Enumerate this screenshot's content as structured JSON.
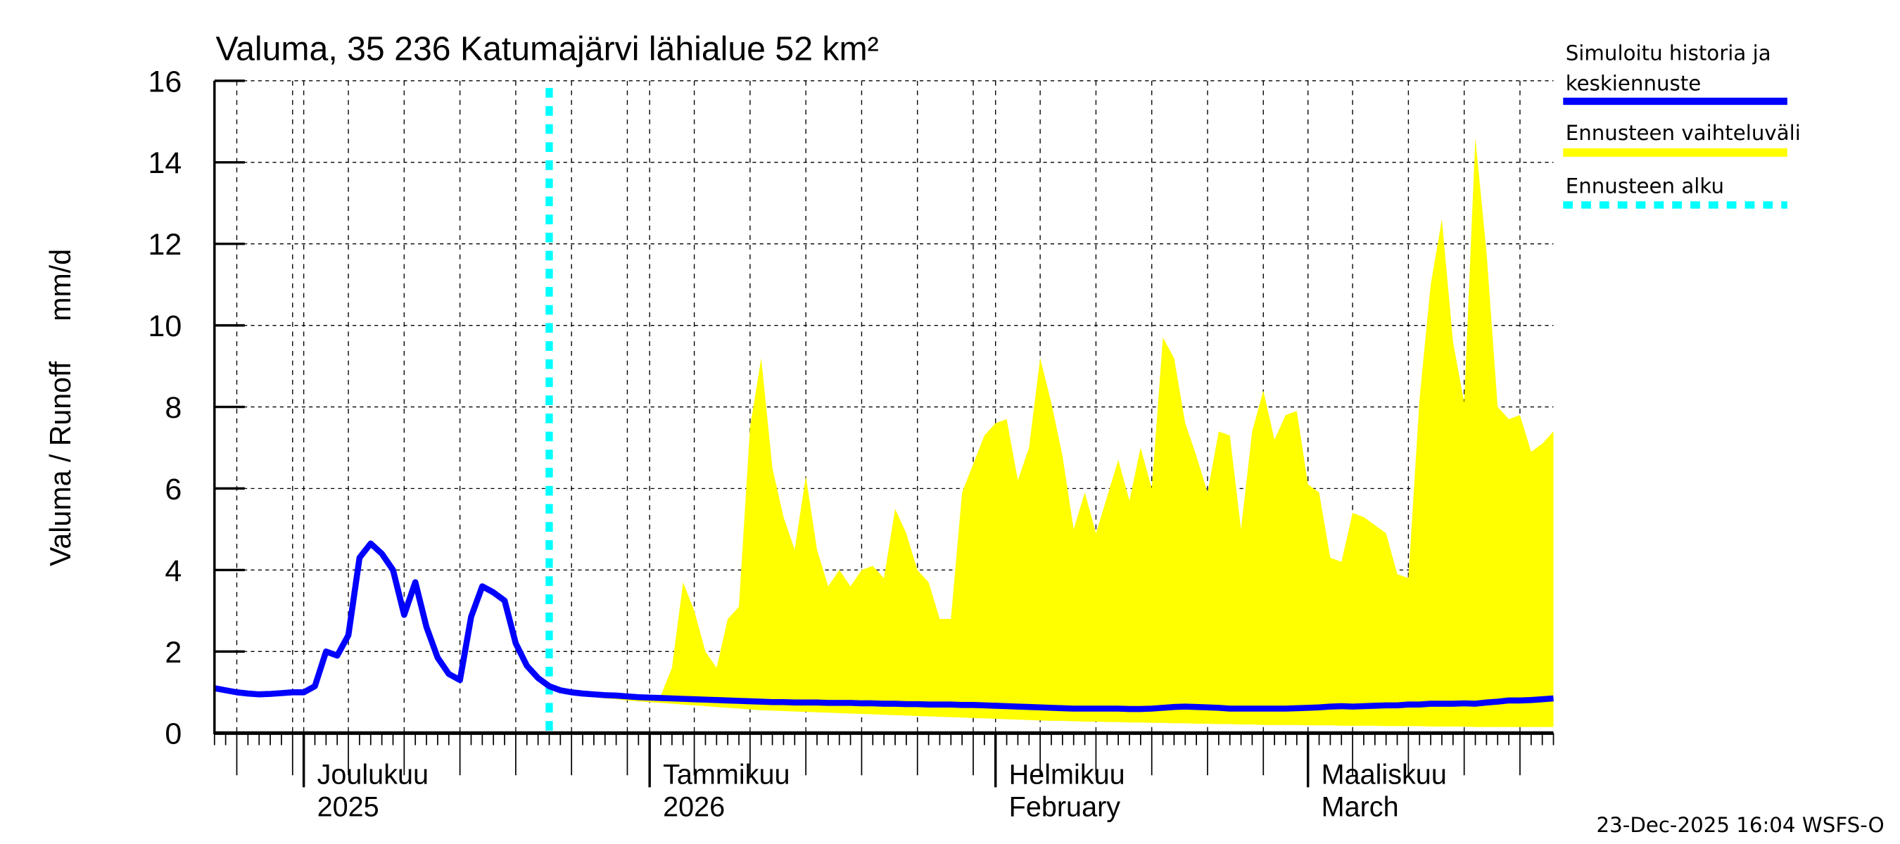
{
  "chart_data": {
    "type": "area",
    "title": "Valuma, 35 236 Katumajärvi lähialue 52 km²",
    "ylabel": "Valuma / Runoff     mm/d",
    "ylim": [
      0,
      16
    ],
    "yticks": [
      "0",
      "2",
      "4",
      "6",
      "8",
      "10",
      "12",
      "14",
      "16"
    ],
    "xlim": [
      "2025-11-23",
      "2026-03-23"
    ],
    "x_step": "1 day",
    "grid": true,
    "legend_position": "right",
    "month_labels": [
      {
        "date": "2025-12-01",
        "line1": "Joulukuu",
        "line2": "2025"
      },
      {
        "date": "2026-01-01",
        "line1": "Tammikuu",
        "line2": "2026"
      },
      {
        "date": "2026-02-01",
        "line1": "Helmikuu",
        "line2": "February"
      },
      {
        "date": "2026-03-01",
        "line1": "Maaliskuu",
        "line2": "March"
      }
    ],
    "forecast_start": "2025-12-23",
    "series": [
      {
        "name": "Simuloitu historia ja keskiennuste",
        "color": "#0000ff",
        "start": "2025-11-23",
        "values": [
          1.1,
          1.05,
          1.0,
          0.97,
          0.95,
          0.96,
          0.98,
          1.0,
          1.0,
          1.15,
          2.0,
          1.9,
          2.4,
          4.3,
          4.65,
          4.4,
          4.0,
          2.9,
          3.7,
          2.6,
          1.85,
          1.45,
          1.3,
          2.85,
          3.6,
          3.45,
          3.25,
          2.2,
          1.65,
          1.35,
          1.15,
          1.05,
          1.0,
          0.97,
          0.95,
          0.93,
          0.92,
          0.9,
          0.88,
          0.87,
          0.86,
          0.85,
          0.84,
          0.83,
          0.82,
          0.81,
          0.8,
          0.79,
          0.78,
          0.77,
          0.76,
          0.76,
          0.75,
          0.75,
          0.75,
          0.74,
          0.74,
          0.74,
          0.73,
          0.73,
          0.72,
          0.72,
          0.71,
          0.71,
          0.7,
          0.7,
          0.7,
          0.69,
          0.69,
          0.68,
          0.67,
          0.66,
          0.65,
          0.64,
          0.63,
          0.62,
          0.61,
          0.6,
          0.6,
          0.6,
          0.6,
          0.6,
          0.59,
          0.59,
          0.6,
          0.62,
          0.64,
          0.65,
          0.64,
          0.63,
          0.62,
          0.6,
          0.6,
          0.6,
          0.6,
          0.6,
          0.6,
          0.61,
          0.62,
          0.63,
          0.65,
          0.66,
          0.65,
          0.66,
          0.67,
          0.68,
          0.68,
          0.7,
          0.7,
          0.72,
          0.72,
          0.72,
          0.73,
          0.72,
          0.75,
          0.77,
          0.8,
          0.8,
          0.81,
          0.83,
          0.85
        ]
      },
      {
        "name": "Ennusteen vaihteluväli",
        "color": "#ffff00",
        "start": "2025-12-23",
        "max": [
          1.15,
          1.1,
          1.05,
          1.0,
          0.98,
          0.95,
          0.93,
          0.92,
          0.9,
          0.9,
          0.92,
          1.6,
          3.7,
          3.0,
          2.0,
          1.6,
          2.8,
          3.1,
          7.5,
          9.2,
          6.5,
          5.3,
          4.5,
          6.3,
          4.5,
          3.6,
          4.0,
          3.6,
          4.0,
          4.1,
          3.8,
          5.5,
          4.9,
          4.0,
          3.7,
          2.8,
          2.8,
          5.9,
          6.6,
          7.3,
          7.6,
          7.7,
          6.2,
          7.0,
          9.2,
          8.1,
          6.8,
          5.0,
          5.9,
          4.9,
          5.8,
          6.7,
          5.7,
          7.0,
          6.0,
          9.7,
          9.2,
          7.6,
          6.8,
          5.9,
          7.4,
          7.3,
          5.0,
          7.4,
          8.4,
          7.2,
          7.8,
          7.9,
          6.1,
          5.9,
          4.3,
          4.2,
          5.4,
          5.3,
          5.1,
          4.9,
          3.9,
          3.8,
          8.2,
          11.0,
          12.6,
          9.6,
          8.1,
          14.6,
          11.8,
          8.0,
          7.7,
          7.8,
          6.9,
          7.1,
          7.4
        ],
        "min": [
          1.1,
          1.0,
          0.95,
          0.9,
          0.88,
          0.85,
          0.83,
          0.8,
          0.78,
          0.76,
          0.74,
          0.72,
          0.7,
          0.68,
          0.66,
          0.64,
          0.62,
          0.6,
          0.58,
          0.56,
          0.55,
          0.54,
          0.53,
          0.52,
          0.51,
          0.5,
          0.49,
          0.48,
          0.47,
          0.46,
          0.45,
          0.44,
          0.43,
          0.42,
          0.41,
          0.4,
          0.39,
          0.38,
          0.37,
          0.36,
          0.35,
          0.34,
          0.33,
          0.32,
          0.31,
          0.3,
          0.3,
          0.29,
          0.28,
          0.28,
          0.27,
          0.27,
          0.26,
          0.26,
          0.25,
          0.25,
          0.24,
          0.24,
          0.23,
          0.23,
          0.22,
          0.22,
          0.21,
          0.21,
          0.2,
          0.2,
          0.2,
          0.2,
          0.19,
          0.19,
          0.19,
          0.18,
          0.18,
          0.18,
          0.18,
          0.17,
          0.17,
          0.17,
          0.17,
          0.16,
          0.16,
          0.16,
          0.16,
          0.15,
          0.15,
          0.15,
          0.15,
          0.15,
          0.15,
          0.15,
          0.15
        ]
      }
    ],
    "legend": [
      {
        "line1": "Simuloitu historia ja",
        "line2": "keskiennuste",
        "color": "#0000ff",
        "style": "solid"
      },
      {
        "line1": "Ennusteen vaihteluväli",
        "color": "#ffff00",
        "style": "solid"
      },
      {
        "line1": "Ennusteen alku",
        "color": "#00ffff",
        "style": "dashed"
      }
    ],
    "footer": "23-Dec-2025 16:04 WSFS-O"
  }
}
